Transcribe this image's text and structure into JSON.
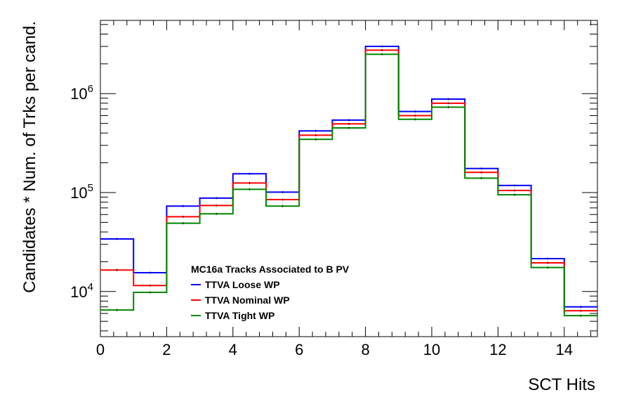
{
  "chart_data": {
    "type": "line",
    "style": "histogram-step",
    "xlabel": "SCT Hits",
    "ylabel": "Candidates * Num. of Trks per cand.",
    "xlim": [
      0,
      15
    ],
    "ylim": [
      3500,
      5500000
    ],
    "yscale": "log",
    "x_bin_edges": [
      0,
      1,
      2,
      3,
      4,
      5,
      6,
      7,
      8,
      9,
      10,
      11,
      12,
      13,
      14,
      15
    ],
    "x_ticks": [
      0,
      2,
      4,
      6,
      8,
      10,
      12,
      14
    ],
    "x_tick_labels": [
      "0",
      "2",
      "4",
      "6",
      "8",
      "10",
      "12",
      "14"
    ],
    "y_ticks": [
      {
        "value": 10000,
        "base": "10",
        "exp": "4"
      },
      {
        "value": 100000,
        "base": "10",
        "exp": "5"
      },
      {
        "value": 1000000,
        "base": "10",
        "exp": "6"
      }
    ],
    "legend": {
      "title": "MC16a Tracks Associated to B PV",
      "placement": "lower-left"
    },
    "series": [
      {
        "name": "TTVA Loose WP",
        "color": "#0000ff",
        "values": [
          34000,
          15500,
          73000,
          88000,
          155000,
          101000,
          420000,
          540000,
          3000000,
          660000,
          880000,
          175000,
          118000,
          21500,
          7000
        ]
      },
      {
        "name": "TTVA Nominal WP",
        "color": "#ff0000",
        "values": [
          16500,
          11500,
          57000,
          74000,
          125000,
          85000,
          380000,
          495000,
          2750000,
          600000,
          800000,
          160000,
          105000,
          19500,
          6400
        ]
      },
      {
        "name": "TTVA Tight WP",
        "color": "#008800",
        "values": [
          6500,
          9800,
          49000,
          61000,
          108000,
          73000,
          345000,
          450000,
          2500000,
          550000,
          730000,
          140000,
          95000,
          17500,
          5700
        ]
      }
    ]
  }
}
